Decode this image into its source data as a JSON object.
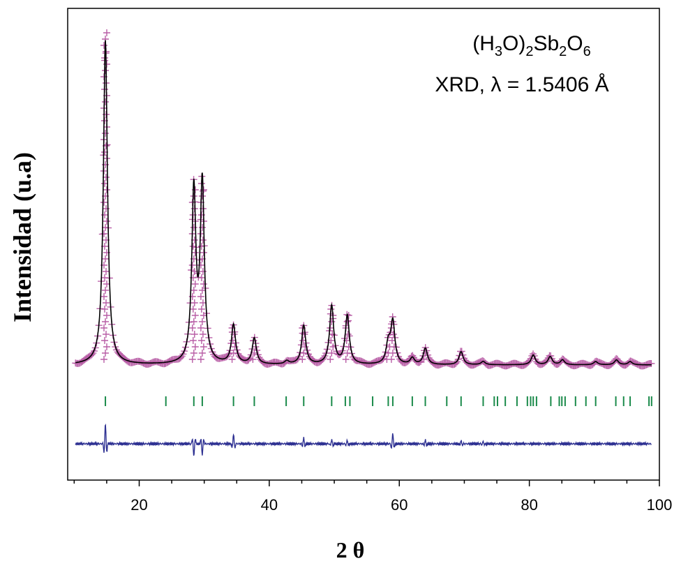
{
  "chart_data": {
    "type": "line",
    "annotation_formula": {
      "base": "(H",
      "s1": "3",
      "mid": "O)",
      "s2": "2",
      "mid2": "Sb",
      "s3": "2",
      "mid3": "O",
      "s4": "6"
    },
    "annotation_method": "XRD, λ = 1.5406 Å",
    "xlabel": "2 θ",
    "ylabel": "Intensidad (u.a)",
    "xlim": [
      9,
      100
    ],
    "x_ticks": [
      20,
      40,
      60,
      80,
      100
    ],
    "x_tick_labels": [
      "20",
      "40",
      "60",
      "80",
      "100"
    ],
    "y_ticks_shown": false,
    "grid": false,
    "colors": {
      "observed": "#b04d9c",
      "calculated": "#000000",
      "bragg": "#1a8a4a",
      "difference": "#2e3192",
      "frame": "#000000"
    },
    "background": 0.04,
    "peak_fwhm": 0.75,
    "peaks": [
      {
        "pos": 14.8,
        "height": 1.0
      },
      {
        "pos": 28.4,
        "height": 0.53
      },
      {
        "pos": 29.7,
        "height": 0.55
      },
      {
        "pos": 34.5,
        "height": 0.12
      },
      {
        "pos": 37.7,
        "height": 0.08
      },
      {
        "pos": 42.7,
        "height": 0.01
      },
      {
        "pos": 45.3,
        "height": 0.12
      },
      {
        "pos": 49.6,
        "height": 0.18
      },
      {
        "pos": 52.0,
        "height": 0.15
      },
      {
        "pos": 58.3,
        "height": 0.06
      },
      {
        "pos": 59.0,
        "height": 0.13
      },
      {
        "pos": 62.0,
        "height": 0.02
      },
      {
        "pos": 64.0,
        "height": 0.05
      },
      {
        "pos": 69.5,
        "height": 0.04
      },
      {
        "pos": 72.9,
        "height": 0.01
      },
      {
        "pos": 80.6,
        "height": 0.03
      },
      {
        "pos": 83.2,
        "height": 0.025
      },
      {
        "pos": 85.1,
        "height": 0.015
      },
      {
        "pos": 90.2,
        "height": 0.01
      },
      {
        "pos": 93.4,
        "height": 0.015
      },
      {
        "pos": 95.5,
        "height": 0.01
      }
    ],
    "bragg_positions": [
      14.8,
      24.1,
      28.4,
      29.7,
      34.5,
      37.7,
      42.6,
      45.3,
      49.6,
      51.7,
      52.4,
      55.9,
      58.3,
      59.0,
      62.0,
      64.0,
      67.3,
      69.5,
      72.9,
      74.6,
      75.1,
      76.3,
      78.1,
      79.7,
      80.2,
      80.6,
      81.1,
      83.3,
      84.6,
      85.0,
      85.5,
      87.1,
      88.7,
      90.2,
      93.3,
      94.5,
      95.5,
      98.4,
      98.8
    ],
    "difference_features": [
      {
        "pos": 14.8,
        "amp": 28
      },
      {
        "pos": 28.4,
        "amp": -18
      },
      {
        "pos": 29.7,
        "amp": -15
      },
      {
        "pos": 34.5,
        "amp": 14
      },
      {
        "pos": 45.3,
        "amp": 8
      },
      {
        "pos": 49.6,
        "amp": 6
      },
      {
        "pos": 52.0,
        "amp": 5
      },
      {
        "pos": 59.0,
        "amp": 15
      },
      {
        "pos": 64.0,
        "amp": 5
      },
      {
        "pos": 69.5,
        "amp": 4
      },
      {
        "pos": 72.9,
        "amp": 3
      }
    ]
  }
}
